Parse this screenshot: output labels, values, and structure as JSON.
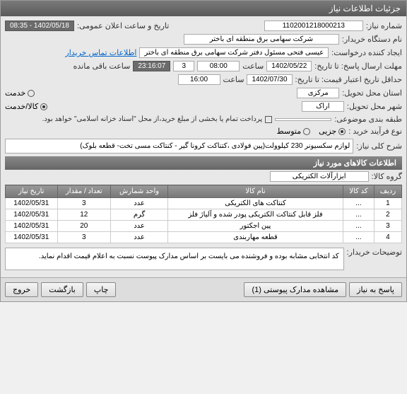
{
  "title": "جزئیات اطلاعات نیاز",
  "fields": {
    "need_no_lbl": "شماره نیاز:",
    "need_no": "1102001218000213",
    "announce_lbl": "تاریخ و ساعت اعلان عمومی:",
    "announce_val": "1402/05/18 - 08:35",
    "buyer_lbl": "نام دستگاه خریدار:",
    "buyer_val": "شرکت سهامی برق منطقه ای باختر",
    "creator_lbl": "ایجاد کننده درخواست:",
    "creator_val": "عیسی فتحی مسئول دفتر شرکت سهامی برق منطقه ای باختر",
    "contact_link": "اطلاعات تماس خریدار",
    "deadline_lbl": "مهلت ارسال پاسخ: تا تاریخ:",
    "deadline_date": "1402/05/22",
    "time_lbl": "ساعت",
    "deadline_time": "08:00",
    "days_val": "3",
    "remain_val": "23:16:07",
    "remain_lbl": "ساعت باقی مانده",
    "validity_lbl": "حداقل تاریخ اعتبار قیمت: تا تاریخ:",
    "validity_date": "1402/07/30",
    "validity_time": "16:00",
    "province_lbl": "استان محل تحویل:",
    "province_val": "مرکزی",
    "service_lbl": "خدمت",
    "city_lbl": "شهر محل تحویل:",
    "city_val": "اراک",
    "goods_service_lbl": "کالا/خدمت",
    "class_lbl": "طبقه بندی موضوعی:",
    "partial_pay": "پرداخت تمام یا بخشی از مبلغ خرید،از محل \"اسناد خزانه اسلامی\" خواهد بود.",
    "process_lbl": "نوع فرآیند خرید :",
    "proc_low": "جزیی",
    "proc_mid": "متوسط",
    "desc_lbl": "شرح کلی نیاز:",
    "desc_val": "لوازم سکسیونر 230 کیلوولت(پین فولادی ،کتناکت کرونا گیر - کنتاکت مسی تخت- قطعه بلوک)",
    "items_hdr": "اطلاعات کالاهای مورد نیاز",
    "group_lbl": "گروه کالا:",
    "group_val": "ابزارآلات الکتریکی",
    "notes_lbl": "توضیحات خریدار:",
    "notes_val": "کد انتخابی مشابه بوده و فروشنده می بایست بر اساس مدارک پیوست نسبت به اعلام قیمت اقدام نماید."
  },
  "table": {
    "headers": [
      "ردیف",
      "کد کالا",
      "نام کالا",
      "واحد شمارش",
      "تعداد / مقدار",
      "تاریخ نیاز"
    ],
    "rows": [
      [
        "1",
        "...",
        "کنتاکت های الکتریکی",
        "عدد",
        "3",
        "1402/05/31"
      ],
      [
        "2",
        "...",
        "فلز قابل کنتاکت الکتریکی پودر شده و آلیاژ فلز",
        "گرم",
        "12",
        "1402/05/31"
      ],
      [
        "3",
        "...",
        "پین اجکتور",
        "عدد",
        "20",
        "1402/05/31"
      ],
      [
        "4",
        "...",
        "قطعه مهاربندی",
        "عدد",
        "3",
        "1402/05/31"
      ]
    ]
  },
  "buttons": {
    "respond": "پاسخ به نیاز",
    "attachments": "مشاهده مدارک پیوستی (1)",
    "print": "چاپ",
    "back": "بازگشت",
    "exit": "خروج"
  }
}
